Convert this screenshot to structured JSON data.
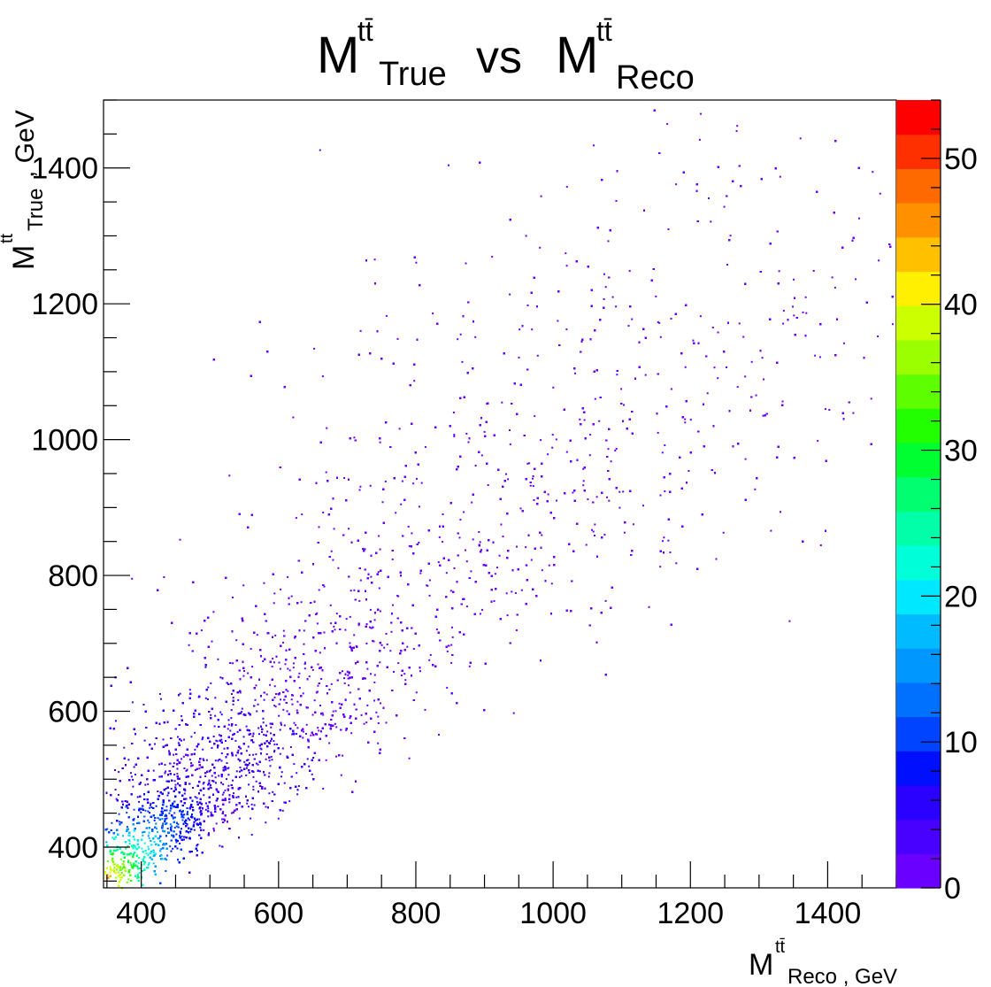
{
  "chart_data": {
    "type": "heatmap",
    "title": {
      "main": "M",
      "sup1": "tt̄",
      "sub1": "True",
      "vs": "vs",
      "main2": "M",
      "sup2": "tt̄",
      "sub2": "Reco"
    },
    "xlabel": {
      "main": "M",
      "sup": "tt̄",
      "sub": "Reco , GeV"
    },
    "ylabel": {
      "main": "M",
      "sup": "tt",
      "sub": "True",
      "suffix": ", GeV"
    },
    "xlim": [
      345,
      1500
    ],
    "ylim": [
      340,
      1500
    ],
    "zlim": [
      0,
      54
    ],
    "x_ticks": [
      400,
      600,
      800,
      1000,
      1200,
      1400
    ],
    "y_ticks": [
      400,
      600,
      800,
      1000,
      1200,
      1400
    ],
    "z_ticks": [
      0,
      10,
      20,
      30,
      40,
      50
    ],
    "x_tick_labels": [
      "400",
      "600",
      "800",
      "1000",
      "1200",
      "1400"
    ],
    "y_tick_labels": [
      "400",
      "600",
      "800",
      "1000",
      "1200",
      "1400"
    ],
    "z_tick_labels": [
      "0",
      "10",
      "20",
      "30",
      "40",
      "50"
    ],
    "palette": [
      "#6a00ff",
      "#4800ff",
      "#2a00ff",
      "#0010ff",
      "#0044ff",
      "#0070ff",
      "#0098ff",
      "#00bbff",
      "#00e8ff",
      "#00ffd8",
      "#00ffa8",
      "#00ff70",
      "#00ff30",
      "#22ff00",
      "#5dff00",
      "#9cff00",
      "#ccff00",
      "#ffef00",
      "#ffc000",
      "#ff9000",
      "#ff6a00",
      "#ff3000",
      "#ff0000"
    ],
    "density_model": {
      "peak_x": 355,
      "peak_y": 355,
      "peak_value": 45,
      "ridge_slope": 1.0,
      "note_points": [
        {
          "x": 360,
          "y": 365,
          "z": 44
        },
        {
          "x": 400,
          "y": 390,
          "z": 30
        },
        {
          "x": 450,
          "y": 440,
          "z": 16
        },
        {
          "x": 500,
          "y": 480,
          "z": 8
        },
        {
          "x": 600,
          "y": 560,
          "z": 3
        },
        {
          "x": 700,
          "y": 650,
          "z": 2
        },
        {
          "x": 850,
          "y": 780,
          "z": 1
        },
        {
          "x": 1000,
          "y": 950,
          "z": 1
        }
      ]
    },
    "grid": false,
    "legend": "colorbar-right"
  }
}
